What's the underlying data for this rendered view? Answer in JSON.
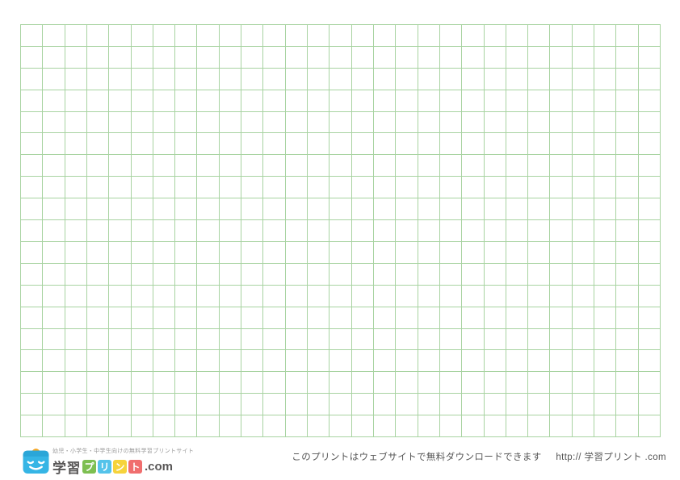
{
  "page": {
    "background": "#ffffff",
    "description": "printable square grid paper sheet"
  },
  "grid": {
    "columns": 29,
    "rows": 19,
    "line_color": "#a8d3a1"
  },
  "logo": {
    "tagline": "幼児・小学生・中学生向けの無料学習プリントサイト",
    "brand_prefix": "学習",
    "brand_tiles": [
      {
        "char": "プ",
        "color": "#7dbf51"
      },
      {
        "char": "リ",
        "color": "#54c3ea"
      },
      {
        "char": "ン",
        "color": "#f6d33c"
      },
      {
        "char": "ト",
        "color": "#f06e6e"
      }
    ],
    "brand_suffix": ".com",
    "icon": "school-bag-smiley-icon",
    "icon_colors": {
      "body": "#35b5e5",
      "flap": "#2aa6d8",
      "handle": "#f5a623",
      "face": "#ffffff"
    }
  },
  "footer": {
    "note": "このプリントはウェブサイトで無料ダウンロードできます",
    "url": "http:// 学習プリント .com"
  }
}
